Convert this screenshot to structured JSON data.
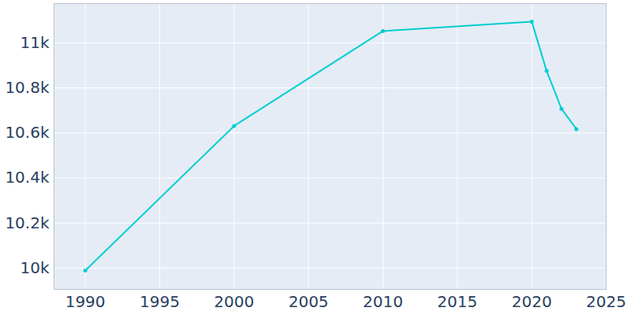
{
  "chart_data": {
    "type": "line",
    "x": [
      1990,
      2000,
      2010,
      2020,
      2021,
      2022,
      2023
    ],
    "values": [
      9990,
      10631,
      11052,
      11094,
      10875,
      10707,
      10617
    ],
    "color": "#00ced1",
    "marker": "circle",
    "line_style": "solid",
    "grid": true,
    "xlim": [
      1987.9,
      2025
    ],
    "xticks": [
      1990,
      1995,
      2000,
      2005,
      2010,
      2015,
      2020,
      2025
    ],
    "ylim": [
      9906,
      11174
    ],
    "yticks": [
      {
        "value": 10000,
        "label": "10k"
      },
      {
        "value": 10200,
        "label": "10.2k"
      },
      {
        "value": 10400,
        "label": "10.4k"
      },
      {
        "value": 10600,
        "label": "10.6k"
      },
      {
        "value": 10800,
        "label": "10.8k"
      },
      {
        "value": 11000,
        "label": "11k"
      }
    ]
  }
}
